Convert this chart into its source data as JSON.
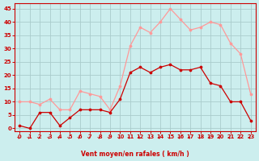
{
  "x": [
    0,
    1,
    2,
    3,
    4,
    5,
    6,
    7,
    8,
    9,
    10,
    11,
    12,
    13,
    14,
    15,
    16,
    17,
    18,
    19,
    20,
    21,
    22,
    23
  ],
  "wind_mean": [
    1,
    0,
    6,
    6,
    1,
    4,
    7,
    7,
    7,
    6,
    11,
    21,
    23,
    21,
    23,
    24,
    22,
    22,
    23,
    17,
    16,
    10,
    10,
    3
  ],
  "wind_gust": [
    10,
    10,
    9,
    11,
    7,
    7,
    14,
    13,
    12,
    7,
    16,
    31,
    38,
    36,
    40,
    45,
    41,
    37,
    38,
    40,
    39,
    32,
    28,
    13
  ],
  "mean_color": "#cc0000",
  "gust_color": "#ff9999",
  "bg_color": "#cceeee",
  "grid_color": "#aacccc",
  "xlabel": "Vent moyen/en rafales ( km/h )",
  "ylabel_ticks": [
    0,
    5,
    10,
    15,
    20,
    25,
    30,
    35,
    40,
    45
  ],
  "ylim": [
    -1,
    47
  ],
  "xlim": [
    -0.5,
    23.5
  ],
  "xlabel_color": "#cc0000",
  "tick_color": "#cc0000",
  "spine_color": "#cc0000"
}
